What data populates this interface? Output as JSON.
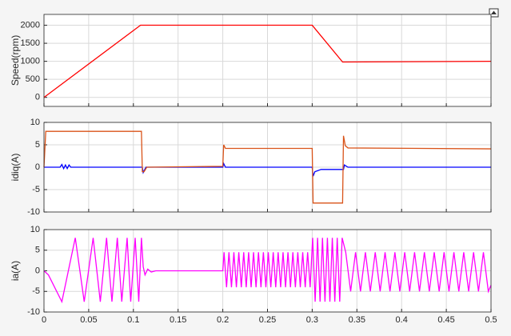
{
  "chart_data": [
    {
      "type": "line",
      "y_label": "Speed(rpm)",
      "grid": true,
      "xlim": [
        0,
        0.5
      ],
      "xticks": [
        0,
        0.05,
        0.1,
        0.15,
        0.2,
        0.25,
        0.3,
        0.35,
        0.4,
        0.45,
        0.5
      ],
      "ylim": [
        -250,
        2300
      ],
      "yticks": [
        0,
        500,
        1000,
        1500,
        2000
      ],
      "series": [
        {
          "color": "#ff0000",
          "x": [
            0,
            0.108,
            0.3,
            0.334,
            0.5
          ],
          "values": [
            0,
            2000,
            2000,
            980,
            1000
          ]
        }
      ]
    },
    {
      "type": "line",
      "y_label": "idiq(A)",
      "grid": true,
      "xlim": [
        0,
        0.5
      ],
      "xticks": [
        0,
        0.05,
        0.1,
        0.15,
        0.2,
        0.25,
        0.3,
        0.35,
        0.4,
        0.45,
        0.5
      ],
      "ylim": [
        -10,
        10
      ],
      "yticks": [
        -10,
        -5,
        0,
        5,
        10
      ],
      "series": [
        {
          "color": "#0000ff",
          "x": [
            0,
            0.01,
            0.018,
            0.02,
            0.022,
            0.024,
            0.026,
            0.028,
            0.03,
            0.11,
            0.111,
            0.114,
            0.2,
            0.201,
            0.203,
            0.3,
            0.301,
            0.303,
            0.31,
            0.335,
            0.336,
            0.34,
            0.5
          ],
          "values": [
            0,
            0,
            0,
            0.6,
            -0.3,
            0.5,
            -0.3,
            0.5,
            0,
            0,
            -1.2,
            0,
            0,
            0.8,
            0,
            0,
            -2,
            -1,
            -0.5,
            -0.5,
            0.5,
            0,
            0
          ]
        },
        {
          "color": "#d95319",
          "x": [
            0,
            0.002,
            0.109,
            0.11,
            0.112,
            0.115,
            0.2,
            0.201,
            0.203,
            0.3,
            0.301,
            0.334,
            0.335,
            0.337,
            0.34,
            0.5
          ],
          "values": [
            0,
            8,
            8,
            -1,
            -1,
            0,
            0.2,
            5,
            4.2,
            4.2,
            -8,
            -8,
            7,
            4.8,
            4.3,
            4.1
          ]
        }
      ]
    },
    {
      "type": "line",
      "y_label": "ia(A)",
      "grid": true,
      "xlim": [
        0,
        0.5
      ],
      "xticks": [
        0,
        0.05,
        0.1,
        0.15,
        0.2,
        0.25,
        0.3,
        0.35,
        0.4,
        0.45,
        0.5
      ],
      "ylim": [
        -10,
        10
      ],
      "yticks": [
        -10,
        -5,
        0,
        5,
        10
      ],
      "series": [
        {
          "color": "#ff00ff",
          "x": [
            0,
            0.005,
            0.02,
            0.035,
            0.045,
            0.055,
            0.063,
            0.07,
            0.076,
            0.082,
            0.087,
            0.093,
            0.097,
            0.102,
            0.106,
            0.109,
            0.111,
            0.113,
            0.116,
            0.12,
            0.125,
            0.2,
            0.2014,
            0.2042,
            0.2069,
            0.2097,
            0.2124,
            0.2152,
            0.2179,
            0.2207,
            0.2234,
            0.2262,
            0.2289,
            0.2317,
            0.2344,
            0.2372,
            0.2399,
            0.2427,
            0.2454,
            0.2482,
            0.2509,
            0.2537,
            0.2564,
            0.2592,
            0.2619,
            0.2647,
            0.2674,
            0.2702,
            0.2729,
            0.2757,
            0.2784,
            0.2812,
            0.2839,
            0.2867,
            0.2894,
            0.2922,
            0.2949,
            0.2977,
            0.3005,
            0.3033,
            0.306,
            0.3088,
            0.3115,
            0.3143,
            0.317,
            0.3198,
            0.3225,
            0.3253,
            0.328,
            0.3308,
            0.3335,
            0.3375,
            0.343,
            0.3485,
            0.354,
            0.3595,
            0.365,
            0.3705,
            0.376,
            0.3815,
            0.387,
            0.3925,
            0.398,
            0.4035,
            0.409,
            0.4145,
            0.42,
            0.4255,
            0.431,
            0.4365,
            0.442,
            0.4475,
            0.453,
            0.4585,
            0.464,
            0.4695,
            0.475,
            0.4805,
            0.486,
            0.4915,
            0.497,
            0.5
          ],
          "values": [
            0,
            -1,
            -7.5,
            8,
            -7.5,
            8,
            -7.5,
            8,
            -7.5,
            8,
            -7.5,
            8,
            -7.5,
            8,
            -7.5,
            8,
            1,
            -1,
            0.4,
            -0.3,
            0,
            0,
            4.5,
            -4,
            4.5,
            -4,
            4.5,
            -4,
            4.5,
            -4,
            4.5,
            -4,
            4.5,
            -4,
            4.5,
            -4,
            4.5,
            -4,
            4.5,
            -4,
            4.5,
            -4,
            4.5,
            -4,
            4.5,
            -4,
            4.5,
            -4,
            4.5,
            -4,
            4.5,
            -4,
            4.5,
            -4,
            4.5,
            -4,
            4.5,
            -4,
            8,
            -7.5,
            8,
            -7.5,
            8,
            -7.5,
            8,
            -7.5,
            8,
            -7.5,
            8,
            -7.5,
            8,
            4.5,
            -5,
            4.5,
            -5,
            4.5,
            -5,
            4.5,
            -5,
            4.5,
            -5,
            4.5,
            -5,
            4.5,
            -5,
            4.5,
            -5,
            4.5,
            -5,
            4.5,
            -5,
            4.5,
            -5,
            4.5,
            -5,
            4.5,
            -5,
            4.5,
            -5,
            4.5,
            -5,
            -3.5
          ]
        }
      ]
    }
  ]
}
